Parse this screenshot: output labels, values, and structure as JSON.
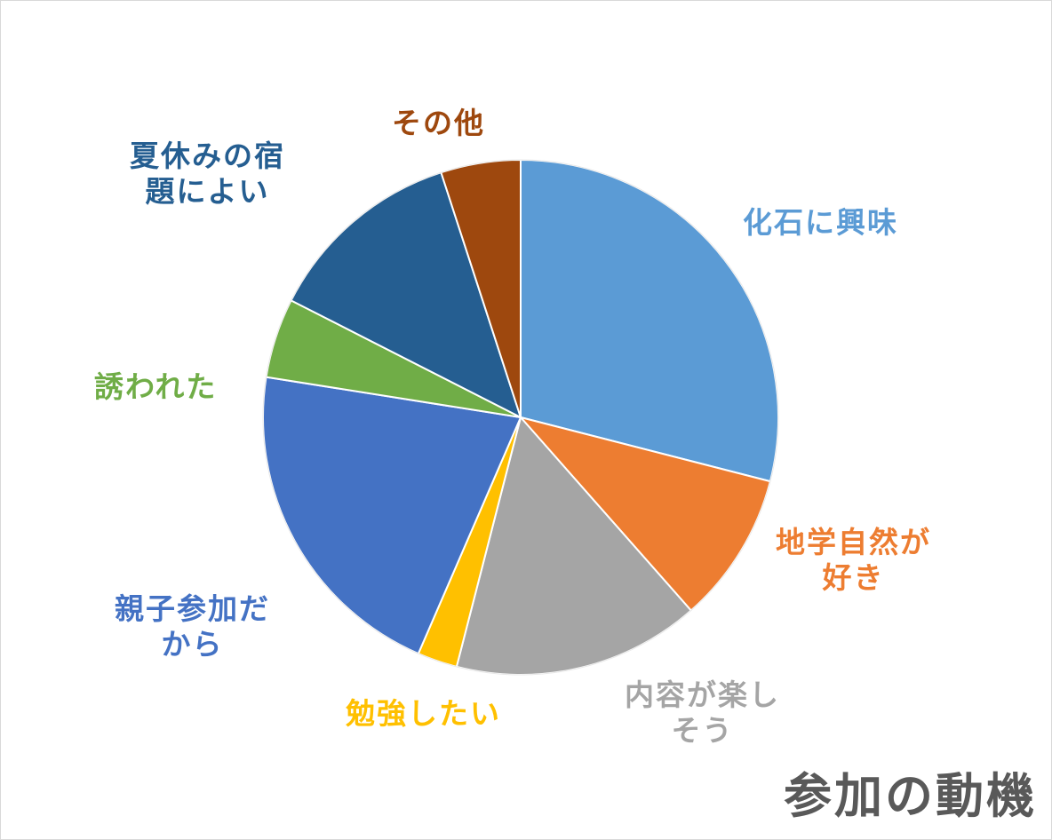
{
  "chart_data": {
    "type": "pie",
    "title": "参加の動機",
    "slices": [
      {
        "label": "化石に興味",
        "value": 29,
        "color": "#5b9bd5"
      },
      {
        "label": "地学自然が好き",
        "value": 9.5,
        "color": "#ed7d31"
      },
      {
        "label": "内容が楽しそう",
        "value": 15.5,
        "color": "#a5a5a5"
      },
      {
        "label": "勉強したい",
        "value": 2.5,
        "color": "#ffc000"
      },
      {
        "label": "親子参加だから",
        "value": 21,
        "color": "#4472c4"
      },
      {
        "label": "誘われた",
        "value": 5,
        "color": "#70ad47"
      },
      {
        "label": "夏休みの宿題によい",
        "value": 12.5,
        "color": "#255e91"
      },
      {
        "label": "その他",
        "value": 5,
        "color": "#9e480e"
      }
    ],
    "label_lines": [
      [
        "化石に興味"
      ],
      [
        "地学自然が",
        "好き"
      ],
      [
        "内容が楽し",
        "そう"
      ],
      [
        "勉強したい"
      ],
      [
        "親子参加だ",
        "から"
      ],
      [
        "誘われた"
      ],
      [
        "夏休みの宿",
        "題によい"
      ],
      [
        "その他"
      ]
    ],
    "legend": "none"
  }
}
